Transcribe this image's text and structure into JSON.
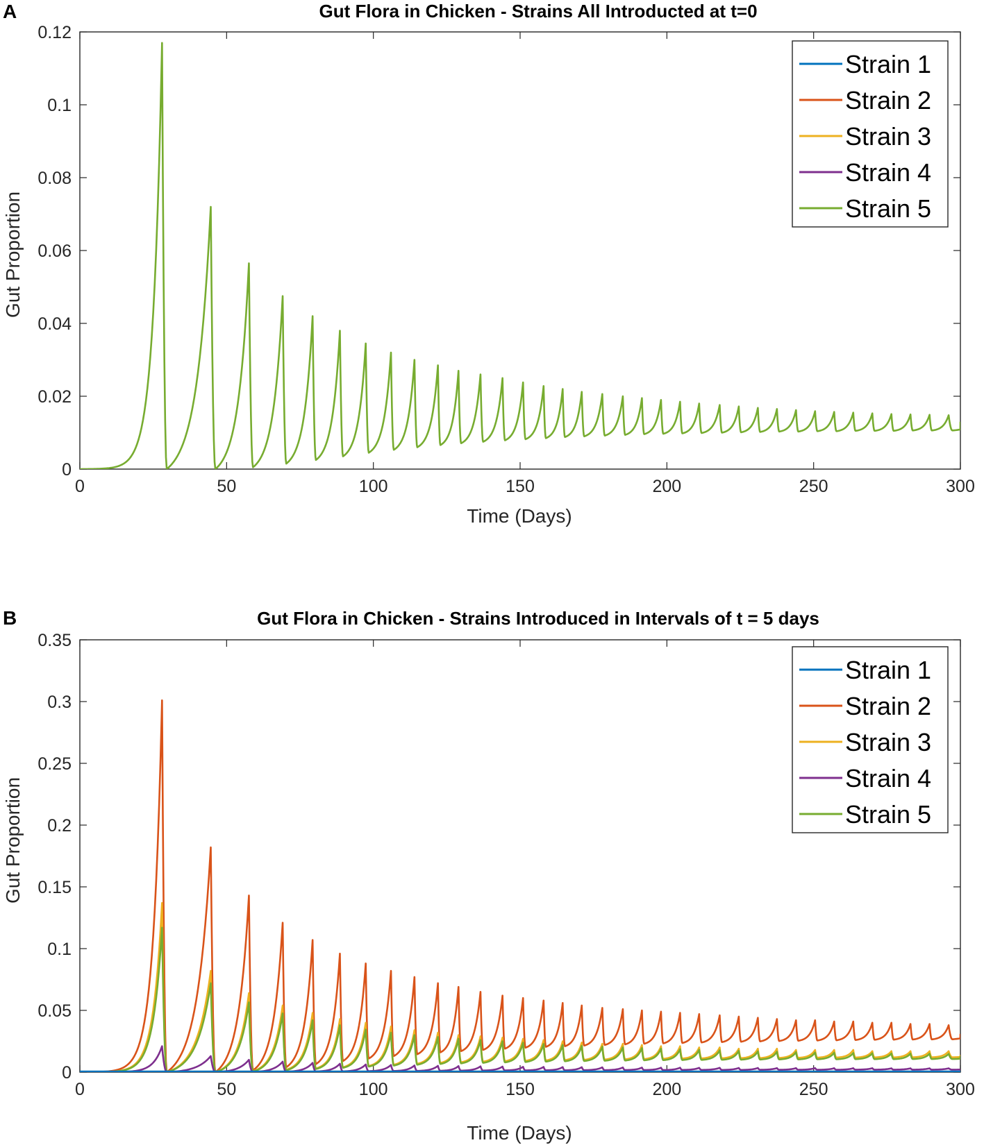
{
  "chart_data": [
    {
      "panel": "A",
      "type": "line",
      "title": "Gut Flora in Chicken - Strains All Introducted at t=0",
      "xlabel": "Time (Days)",
      "ylabel": "Gut Proportion",
      "xlim": [
        0,
        300
      ],
      "ylim": [
        0,
        0.12
      ],
      "xticks": [
        "0",
        "50",
        "100",
        "150",
        "200",
        "250",
        "300"
      ],
      "yticks": [
        "0",
        "0.02",
        "0.04",
        "0.06",
        "0.08",
        "0.1",
        "0.12"
      ],
      "legend_position": "top-right",
      "legend": [
        "Strain 1",
        "Strain 2",
        "Strain 3",
        "Strain 4",
        "Strain 5"
      ],
      "colors": [
        "#0072BD",
        "#D95319",
        "#EDB120",
        "#7E2F8E",
        "#77AC30"
      ],
      "series": [
        {
          "name": "Strain 1",
          "shared_with": "Strain 5"
        },
        {
          "name": "Strain 2",
          "shared_with": "Strain 5"
        },
        {
          "name": "Strain 3",
          "shared_with": "Strain 5"
        },
        {
          "name": "Strain 4",
          "shared_with": "Strain 5"
        },
        {
          "name": "Strain 5",
          "peak_times": [
            28,
            44.6,
            57.6,
            69.1,
            79.3,
            88.6,
            97.4,
            106,
            114,
            122,
            129,
            136.5,
            144,
            151,
            158,
            164.5,
            171,
            178,
            185,
            191.5,
            198,
            204.5,
            211,
            218,
            224.5,
            231,
            237.5,
            244,
            250.5,
            257,
            263.5,
            270,
            276.5,
            283,
            289.5,
            296
          ],
          "peaks": [
            0.117,
            0.072,
            0.0565,
            0.0475,
            0.042,
            0.038,
            0.0345,
            0.032,
            0.03,
            0.0285,
            0.027,
            0.026,
            0.025,
            0.0238,
            0.0228,
            0.022,
            0.0212,
            0.0206,
            0.02,
            0.0195,
            0.019,
            0.0185,
            0.018,
            0.0176,
            0.0172,
            0.0168,
            0.0165,
            0.0162,
            0.0159,
            0.0157,
            0.0155,
            0.0153,
            0.0151,
            0.015,
            0.0149,
            0.0148
          ],
          "troughs": [
            0.0,
            0.0,
            0.0005,
            0.0015,
            0.0025,
            0.0035,
            0.0045,
            0.0053,
            0.006,
            0.0066,
            0.0071,
            0.0075,
            0.0079,
            0.0082,
            0.0085,
            0.0088,
            0.009,
            0.0092,
            0.0094,
            0.0096,
            0.0097,
            0.0098,
            0.0099,
            0.01,
            0.0101,
            0.0102,
            0.0103,
            0.0103,
            0.0104,
            0.0104,
            0.0105,
            0.0105,
            0.0105,
            0.0106,
            0.0106,
            0.0106
          ],
          "end_value": 0.013
        }
      ]
    },
    {
      "panel": "B",
      "type": "line",
      "title": "Gut Flora in Chicken - Strains Introduced in Intervals of t = 5 days",
      "xlabel": "Time (Days)",
      "ylabel": "Gut Proportion",
      "xlim": [
        0,
        300
      ],
      "ylim": [
        0,
        0.35
      ],
      "xticks": [
        "0",
        "50",
        "100",
        "150",
        "200",
        "250",
        "300"
      ],
      "yticks": [
        "0",
        "0.05",
        "0.1",
        "0.15",
        "0.2",
        "0.25",
        "0.3",
        "0.35"
      ],
      "legend_position": "top-right",
      "legend": [
        "Strain 1",
        "Strain 2",
        "Strain 3",
        "Strain 4",
        "Strain 5"
      ],
      "colors": [
        "#0072BD",
        "#D95319",
        "#EDB120",
        "#7E2F8E",
        "#77AC30"
      ],
      "peak_times": [
        28,
        44.6,
        57.6,
        69.1,
        79.3,
        88.6,
        97.4,
        106,
        114,
        122,
        129,
        136.5,
        144,
        151,
        158,
        164.5,
        171,
        178,
        185,
        191.5,
        198,
        204.5,
        211,
        218,
        224.5,
        231,
        237.5,
        244,
        250.5,
        257,
        263.5,
        270,
        276.5,
        283,
        289.5,
        296
      ],
      "series": [
        {
          "name": "Strain 2",
          "peaks": [
            0.301,
            0.182,
            0.143,
            0.121,
            0.107,
            0.096,
            0.088,
            0.082,
            0.077,
            0.072,
            0.069,
            0.065,
            0.062,
            0.06,
            0.058,
            0.056,
            0.054,
            0.052,
            0.051,
            0.05,
            0.049,
            0.048,
            0.047,
            0.046,
            0.045,
            0.044,
            0.043,
            0.042,
            0.042,
            0.041,
            0.041,
            0.04,
            0.04,
            0.039,
            0.039,
            0.038
          ],
          "troughs": [
            0.0,
            0.0,
            0.0015,
            0.004,
            0.0065,
            0.009,
            0.011,
            0.013,
            0.0145,
            0.016,
            0.017,
            0.018,
            0.019,
            0.0198,
            0.0205,
            0.021,
            0.0215,
            0.022,
            0.0225,
            0.023,
            0.0233,
            0.0236,
            0.024,
            0.0243,
            0.0246,
            0.0249,
            0.0252,
            0.0254,
            0.0256,
            0.0258,
            0.026,
            0.0262,
            0.0263,
            0.0264,
            0.0265,
            0.0266
          ],
          "end_value": 0.031
        },
        {
          "name": "Strain 3",
          "peaks": [
            0.137,
            0.082,
            0.064,
            0.054,
            0.048,
            0.043,
            0.04,
            0.037,
            0.034,
            0.032,
            0.03,
            0.029,
            0.028,
            0.027,
            0.026,
            0.025,
            0.024,
            0.023,
            0.023,
            0.022,
            0.021,
            0.021,
            0.02,
            0.02,
            0.019,
            0.019,
            0.019,
            0.018,
            0.018,
            0.018,
            0.018,
            0.017,
            0.017,
            0.017,
            0.017,
            0.017
          ],
          "troughs": [
            0.0,
            0.0,
            0.0008,
            0.002,
            0.003,
            0.004,
            0.005,
            0.006,
            0.0068,
            0.0075,
            0.008,
            0.0085,
            0.0089,
            0.0092,
            0.0095,
            0.0098,
            0.01,
            0.0102,
            0.0104,
            0.0106,
            0.0108,
            0.011,
            0.0111,
            0.0112,
            0.0113,
            0.0114,
            0.0115,
            0.0116,
            0.0117,
            0.0118,
            0.0118,
            0.0119,
            0.0119,
            0.012,
            0.012,
            0.012
          ],
          "end_value": 0.014
        },
        {
          "name": "Strain 5",
          "peaks": [
            0.117,
            0.072,
            0.0565,
            0.0475,
            0.042,
            0.038,
            0.0345,
            0.032,
            0.03,
            0.0285,
            0.027,
            0.026,
            0.025,
            0.0238,
            0.0228,
            0.022,
            0.0212,
            0.0206,
            0.02,
            0.0195,
            0.019,
            0.0185,
            0.018,
            0.0176,
            0.0172,
            0.0168,
            0.0165,
            0.0162,
            0.0159,
            0.0157,
            0.0155,
            0.0153,
            0.0151,
            0.015,
            0.0149,
            0.0148
          ],
          "troughs": [
            0.0,
            0.0,
            0.0005,
            0.0015,
            0.0025,
            0.0035,
            0.0045,
            0.0053,
            0.006,
            0.0066,
            0.0071,
            0.0075,
            0.0079,
            0.0082,
            0.0085,
            0.0088,
            0.009,
            0.0092,
            0.0094,
            0.0096,
            0.0097,
            0.0098,
            0.0099,
            0.01,
            0.0101,
            0.0102,
            0.0103,
            0.0103,
            0.0104,
            0.0104,
            0.0105,
            0.0105,
            0.0105,
            0.0106,
            0.0106,
            0.0106
          ],
          "end_value": 0.013
        },
        {
          "name": "Strain 4",
          "peaks": [
            0.021,
            0.013,
            0.01,
            0.0085,
            0.0075,
            0.0068,
            0.0062,
            0.0058,
            0.0054,
            0.0051,
            0.0049,
            0.0047,
            0.0045,
            0.0043,
            0.0042,
            0.0041,
            0.004,
            0.0039,
            0.0038,
            0.0037,
            0.0036,
            0.0036,
            0.0035,
            0.0035,
            0.0034,
            0.0034,
            0.0033,
            0.0033,
            0.0033,
            0.0032,
            0.0032,
            0.0032,
            0.0031,
            0.0031,
            0.0031,
            0.0031
          ],
          "troughs": [
            0.0,
            0.0,
            0.0001,
            0.0003,
            0.0005,
            0.0006,
            0.0008,
            0.0009,
            0.001,
            0.0011,
            0.0012,
            0.0013,
            0.0014,
            0.0014,
            0.0015,
            0.0015,
            0.0016,
            0.0016,
            0.0017,
            0.0017,
            0.0017,
            0.0018,
            0.0018,
            0.0018,
            0.0018,
            0.0019,
            0.0019,
            0.0019,
            0.0019,
            0.0019,
            0.002,
            0.002,
            0.002,
            0.002,
            0.002,
            0.002
          ],
          "end_value": 0.0022
        },
        {
          "name": "Strain 1",
          "constant": 0.0005
        }
      ]
    }
  ]
}
